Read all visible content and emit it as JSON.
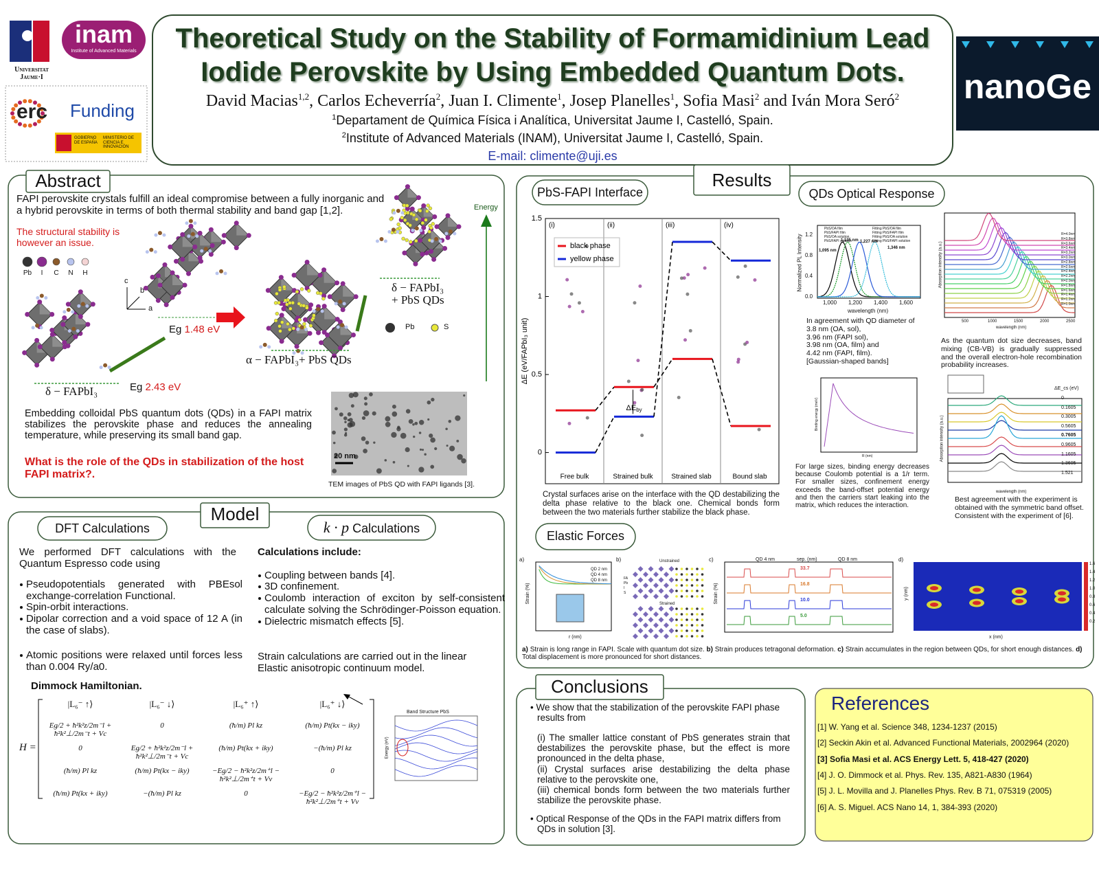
{
  "header": {
    "title_line1": "Theoretical Study on the Stability of Formamidinium Lead",
    "title_line2": "Iodide Perovskite by Using Embedded  Quantum Dots.",
    "authors": [
      {
        "text": "David Macias",
        "sup": "1,2"
      },
      {
        "text": ", Carlos Echeverría",
        "sup": "2"
      },
      {
        "text": ", Juan I. Climente",
        "sup": "1"
      },
      {
        "text": ",  Josep Planelles",
        "sup": "1"
      },
      {
        "text": ", Sofia Masi",
        "sup": "2"
      },
      {
        "text": " and Iván Mora Seró",
        "sup": "2"
      }
    ],
    "affiliations": [
      {
        "sup": "1",
        "text": "Departament de Química Física i Analítica, Universitat Jaume I, Castelló, Spain."
      },
      {
        "sup": "2",
        "text": "Institute of Advanced Materials (INAM), Universitat Jaume I, Castelló, Spain."
      }
    ],
    "email": "E-mail: climente@uji.es"
  },
  "logos": {
    "uji": "Universitat Jaume·I",
    "inam": "inam",
    "inam_sub": "Institute of Advanced Materials",
    "erc": "erc",
    "funding": "Funding",
    "gov": "GOBIERNO DE ESPAÑA",
    "ministry": "MINISTERIO DE CIENCIA E INNOVACIÓN",
    "nanoge": "nanoGe"
  },
  "abstract": {
    "heading": "Abstract",
    "intro": "FAPI perovskite crystals fulfill an ideal compromise between a fully inorganic and a hybrid perovskite in terms of both thermal stability and band gap [1,2].",
    "warning": "The structural stability is however an issue.",
    "atoms": [
      "Pb",
      "I",
      "C",
      "N",
      "H"
    ],
    "axes": [
      "c",
      "b",
      "a"
    ],
    "energy": "Energy",
    "label_delta": "δ − FAPbI₃",
    "label_alpha": "α − FAPbI₃+ PbS QDs",
    "label_delta_qd": [
      "δ − FAPbI₃",
      "+ PbS QDs"
    ],
    "eg_high": {
      "label": "Eg",
      "value": "1.48 eV"
    },
    "eg_low": {
      "label": "Eg",
      "value": "2.43 eV"
    },
    "qd_atoms": [
      "Pb",
      "S"
    ],
    "body": "Embedding colloidal PbS quantum dots (QDs) in a FAPI matrix stabilizes the perovskite phase and reduces the annealing temperature, while preserving its small band gap.",
    "question": "What is the role of the QDs in stabilization of the host FAPI matrix?.",
    "tem_scale": "20 nm",
    "tem_caption": "TEM images of PbS QD with FAPI ligands [3]."
  },
  "model": {
    "heading": "Model",
    "dft_heading": "DFT Calculations",
    "dft_intro": "We performed DFT calculations with the Quantum Espresso code using",
    "dft_bullets": [
      "Pseudopotentials generated with PBEsol exchange-correlation Functional.",
      "Spin-orbit interactions.",
      "Dipolar correction and a void space of 12 A (in the case of slabs).",
      "Atomic positions were relaxed until forces less than 0.004 Ry/a0."
    ],
    "kp_heading_math": "k · p",
    "kp_heading": "Calculations",
    "kp_intro": "Calculations include:",
    "kp_bullets": [
      "Coupling between bands [4].",
      "3D confinement.",
      "Coulomb interaction of exciton by self-consistent calculate solving the Schrödinger-Poisson equation.",
      "Dielectric mismatch effects [5]."
    ],
    "strain": "Strain calculations are carried out in the linear Elastic anisotropic continuum model.",
    "hamiltonian_title": "Dimmock Hamiltonian.",
    "hamiltonian_lhs": "H =",
    "hamiltonian_header": [
      "|L₆⁻ ↑⟩",
      "|L₆⁻ ↓⟩",
      "|L₆⁺ ↑⟩",
      "|L₆⁺ ↓⟩"
    ],
    "hamiltonian_rows": [
      [
        "Eg/2 + ħ²k²z/2m⁻l + ħ²k²⊥/2m⁻t + Vc",
        "0",
        "(ħ/m) Pl kz",
        "(ħ/m) Pt(kx − iky)"
      ],
      [
        "0",
        "Eg/2 + ħ²k²z/2m⁻l + ħ²k²⊥/2m⁻t + Vc",
        "(ħ/m) Pt(kx + iky)",
        "−(ħ/m) Pl kz"
      ],
      [
        "(ħ/m) Pl kz",
        "(ħ/m) Pt(kx − iky)",
        "−Eg/2 − ħ²k²z/2m⁺l − ħ²k²⊥/2m⁺t + Vv",
        "0"
      ],
      [
        "(ħ/m) Pt(kx + iky)",
        "−(ħ/m) Pl kz",
        "0",
        "−Eg/2 − ħ²k²z/2m⁺l − ħ²k²⊥/2m⁺t + Vv"
      ]
    ],
    "band_title": "Band Structure PbS",
    "band_ylabel": "Energy (eV)"
  },
  "results": {
    "heading": "Results",
    "interface": {
      "heading": "PbS-FAPI Interface",
      "ylabel": "ΔE (eV/FAPbI₃ unit)",
      "ylim": [
        -0.2,
        1.5
      ],
      "yticks": [
        0,
        0.5,
        1,
        1.5
      ],
      "panels": [
        "(i)",
        "(ii)",
        "(iii)",
        "(iv)"
      ],
      "categories": [
        "Free bulk",
        "Strained bulk",
        "Strained slab",
        "Bound slab"
      ],
      "series": [
        {
          "name": "black phase",
          "color": "#e8141c",
          "values": [
            0.27,
            0.42,
            0.6,
            0.17
          ]
        },
        {
          "name": "yellow phase",
          "color": "#1428d8",
          "values": [
            0,
            0.23,
            1.35,
            1.23
          ]
        }
      ],
      "annotation": {
        "main": "ΔE",
        "sub": "by"
      },
      "caption": "Crystal surfaces arise on the interface with the QD destabilizing the delta phase relative to the black one. Chemical bonds form between the two materials further stabilize the black phase."
    },
    "optical": {
      "heading": "QDs Optical Response",
      "pl_legend": [
        "PbS/OA film",
        "PbS/FAPI film",
        "PbS/OA solution",
        "PbS/FAPI solution",
        "Fitting PbS/OA film",
        "Fitting PbS/FAPI film",
        "Fitting PbS/OA solution",
        "Fitting PbS/FAPI solution"
      ],
      "pl_peaks": [
        "1,095 nm",
        "1,135 nm",
        "1,227 nm",
        "1,346 nm"
      ],
      "pl_xticks": [
        "1,000",
        "1,200",
        "1,400",
        "1,600"
      ],
      "pl_yticks": [
        "0.0",
        "0.4",
        "0.8",
        "1.2"
      ],
      "pl_xlabel": "wavelength (nm)",
      "pl_ylabel": "Normalized PL Intensity",
      "pl_text": "In agreement with QD diameter of\n3.8 nm (OA, sol),\n3.96 nm (FAPI sol),\n3.98 nm (OA, film) and\n4.42  nm (FAPI, film).\n[Gaussian-shaped bands]",
      "abs_legend": [
        "R=4.0nm",
        "R=3.8nm",
        "R=3.6nm",
        "R=3.4nm",
        "R=3.2nm",
        "R=3.0nm",
        "R=2.8nm",
        "R=2.6nm",
        "R=2.4nm",
        "R=2.2nm",
        "R=2.0nm",
        "R=1.8nm",
        "R=1.6nm",
        "R=1.4nm",
        "R=1.2nm",
        "R=1.0nm"
      ],
      "abs_xticks": [
        "500",
        "1000",
        "1500",
        "2000",
        "2500"
      ],
      "abs_xlabel": "wavelength (nm)",
      "abs_ylabel": "Absorption intensity (a.u.)",
      "abs_text": "As the quantum dot size decreases, band mixing (CB-VB) is gradually suppressed and the overall electron-hole recombination probability increases.",
      "binding_xlabel": "R (nm)",
      "binding_ylabel": "Binding energy (meV)",
      "binding_text": "For large sizes, binding energy decreases because Coulomb potential is a 1/r term. For smaller sizes, confinement energy exceeds the band-offset potential energy and then the carriers start leaking into the matrix, which reduces the interaction.",
      "offset_label": "ΔE_cs (eV)",
      "offset_values": [
        "0",
        "0.1605",
        "0.3005",
        "0.5605",
        "0.7605",
        "0.9605",
        "1.1605",
        "1.3605",
        "1.521"
      ],
      "offset_xlabel": "wavelength (nm)",
      "offset_ylabel": "Absorption intensity (a.u.)",
      "offset_text": "Best agreement with the experiment is obtained with the symmetric band offset. Consistent with the experiment of [6]."
    },
    "elastic": {
      "heading": "Elastic Forces",
      "panels": [
        "a)",
        "b)",
        "c)",
        "d)"
      ],
      "a_legend": [
        "QD 2 nm",
        "QD 4 nm",
        "QD 8 nm"
      ],
      "a_xlabel": "r (nm)",
      "a_ylabel": "Strain (%)",
      "b_labels": [
        "Unstrained",
        "Strained"
      ],
      "b_legend": [
        "FA",
        "Pb",
        "I",
        "S"
      ],
      "c_header": [
        "QD 4 nm",
        "sep. (nm)",
        "QD 8 nm"
      ],
      "c_separations": [
        "33.7",
        "16.8",
        "10.0",
        "5.0"
      ],
      "c_ylabel": "Strain (%)",
      "d_xlabel": "x (nm)",
      "d_ylabel": "y (nm)",
      "d_colorbar": [
        "1.6",
        "1.4",
        "1.2",
        "1.0",
        "0.8",
        "0.6",
        "0.4",
        "0.2"
      ],
      "caption": [
        {
          "label": "a)",
          "text": "Strain is long range in FAPI. Scale with quantum dot size."
        },
        {
          "label": "b)",
          "text": "Strain produces tetragonal deformation."
        },
        {
          "label": "c)",
          "text": "Strain accumulates in the region between QDs, for short enough distances."
        },
        {
          "label": "d)",
          "text": "Total displacement is more pronounced for short distances."
        }
      ]
    }
  },
  "conclusions": {
    "heading": "Conclusions",
    "items": [
      {
        "text": "We show that the stabilization of the perovskite FAPI phase results from",
        "sub": [
          "(i) The smaller lattice constant of PbS generates strain that destabilizes the perovskite phase, but the effect is more pronounced in the delta phase,",
          "(ii) Crystal surfaces arise destabilizing the delta phase relative to the perovskite one,",
          "(iii) chemical bonds form between the two materials further stabilize the perovskite phase."
        ]
      },
      {
        "text": "Optical Response of the QDs in the FAPI matrix differs from QDs in solution [3]."
      }
    ]
  },
  "references": {
    "heading": "References",
    "items": [
      "[1] W. Yang et al. Science 348, 1234-1237 (2015)",
      "[2] Seckin Akin et al. Advanced Functional Materials, 2002964 (2020)",
      "[3] Sofia Masi et al. ACS Energy Lett. 5, 418-427 (2020)",
      "[4] J. O. Dimmock et al. Phys. Rev. 135, A821-A830 (1964)",
      "[5] J. L. Movilla and J. Planelles Phys. Rev. B 71, 075319 (2005)",
      "[6] A. S. Miguel. ACS Nano 14, 1, 384-393 (2020)"
    ]
  }
}
